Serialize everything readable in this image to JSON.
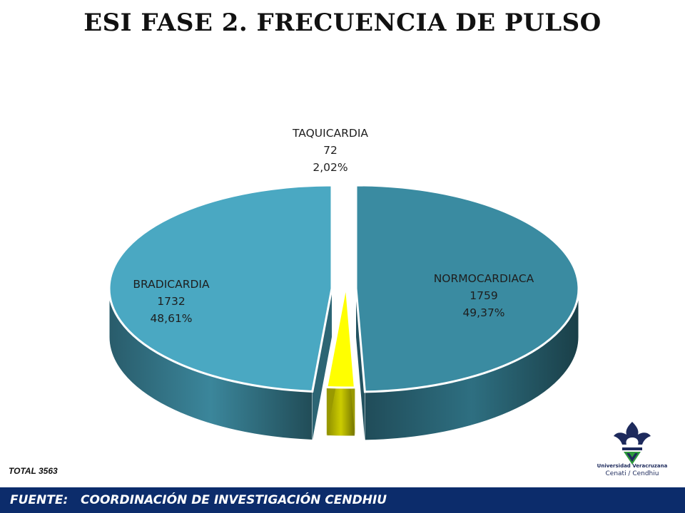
{
  "title": "ESI FASE 2. FRECUENCIA DE PULSO",
  "chart_data": {
    "type": "pie",
    "total_label": "TOTAL 3563",
    "slices": [
      {
        "name": "NORMOCARDIACA",
        "value": 1759,
        "percent_label": "49,37%",
        "color": "#3a8ba1"
      },
      {
        "name": "TAQUICARDIA",
        "value": 72,
        "percent_label": "2,02%",
        "color": "#ffff00"
      },
      {
        "name": "BRADICARDIA",
        "value": 1732,
        "percent_label": "48,61%",
        "color": "#4aa8c2"
      }
    ]
  },
  "logo": {
    "line1": "Universidad Veracruzana",
    "line2": "Cenati / Cendhiu",
    "color": "#1d2a5c",
    "accent": "#2e9b3d"
  },
  "footer": {
    "label": "FUENTE:",
    "text": "COORDINACIÓN DE INVESTIGACIÓN CENDHIU",
    "color": "#0c2c6b"
  }
}
